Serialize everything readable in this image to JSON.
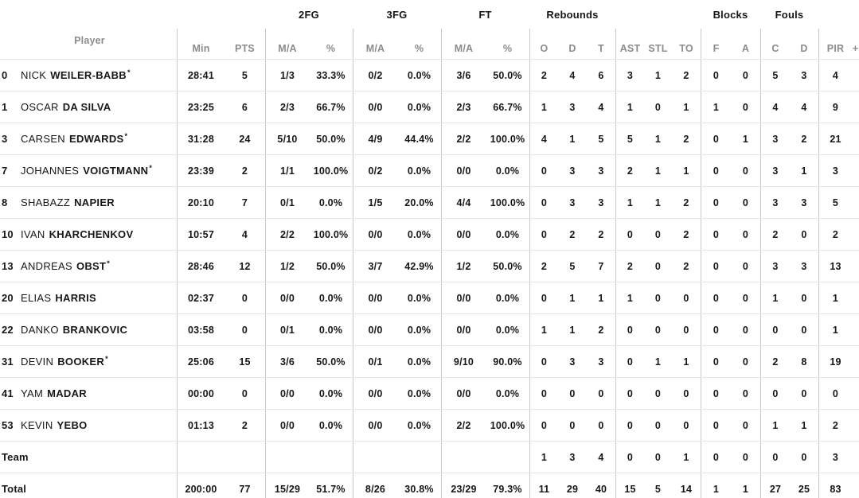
{
  "header": {
    "player_label": "Player",
    "groups": [
      {
        "label": "2FG"
      },
      {
        "label": "3FG"
      },
      {
        "label": "FT"
      },
      {
        "label": "Rebounds"
      },
      {
        "label": "Blocks"
      },
      {
        "label": "Fouls"
      }
    ],
    "columns": {
      "min": "Min",
      "pts": "PTS",
      "fg2_ma": "M/A",
      "fg2_pct": "%",
      "fg3_ma": "M/A",
      "fg3_pct": "%",
      "ft_ma": "M/A",
      "ft_pct": "%",
      "reb_o": "O",
      "reb_d": "D",
      "reb_t": "T",
      "ast": "AST",
      "stl": "STL",
      "to": "TO",
      "blk_f": "F",
      "blk_a": "A",
      "foul_c": "C",
      "foul_d": "D",
      "pir": "PIR",
      "plus": "+"
    }
  },
  "table": {
    "starter_mark": "*",
    "rows": [
      {
        "type": "player",
        "number": "0",
        "first": "NICK",
        "last": "WEILER-BABB",
        "starter": true,
        "min": "28:41",
        "pts": "5",
        "fg2_ma": "1/3",
        "fg2_pct": "33.3%",
        "fg3_ma": "0/2",
        "fg3_pct": "0.0%",
        "ft_ma": "3/6",
        "ft_pct": "50.0%",
        "reb_o": "2",
        "reb_d": "4",
        "reb_t": "6",
        "ast": "3",
        "stl": "1",
        "to": "2",
        "blk_f": "0",
        "blk_a": "0",
        "foul_c": "5",
        "foul_d": "3",
        "pir": "4"
      },
      {
        "type": "player",
        "number": "1",
        "first": "OSCAR",
        "last": "DA SILVA",
        "starter": false,
        "min": "23:25",
        "pts": "6",
        "fg2_ma": "2/3",
        "fg2_pct": "66.7%",
        "fg3_ma": "0/0",
        "fg3_pct": "0.0%",
        "ft_ma": "2/3",
        "ft_pct": "66.7%",
        "reb_o": "1",
        "reb_d": "3",
        "reb_t": "4",
        "ast": "1",
        "stl": "0",
        "to": "1",
        "blk_f": "1",
        "blk_a": "0",
        "foul_c": "4",
        "foul_d": "4",
        "pir": "9"
      },
      {
        "type": "player",
        "number": "3",
        "first": "CARSEN",
        "last": "EDWARDS",
        "starter": true,
        "min": "31:28",
        "pts": "24",
        "fg2_ma": "5/10",
        "fg2_pct": "50.0%",
        "fg3_ma": "4/9",
        "fg3_pct": "44.4%",
        "ft_ma": "2/2",
        "ft_pct": "100.0%",
        "reb_o": "4",
        "reb_d": "1",
        "reb_t": "5",
        "ast": "5",
        "stl": "1",
        "to": "2",
        "blk_f": "0",
        "blk_a": "1",
        "foul_c": "3",
        "foul_d": "2",
        "pir": "21"
      },
      {
        "type": "player",
        "number": "7",
        "first": "JOHANNES",
        "last": "VOIGTMANN",
        "starter": true,
        "min": "23:39",
        "pts": "2",
        "fg2_ma": "1/1",
        "fg2_pct": "100.0%",
        "fg3_ma": "0/2",
        "fg3_pct": "0.0%",
        "ft_ma": "0/0",
        "ft_pct": "0.0%",
        "reb_o": "0",
        "reb_d": "3",
        "reb_t": "3",
        "ast": "2",
        "stl": "1",
        "to": "1",
        "blk_f": "0",
        "blk_a": "0",
        "foul_c": "3",
        "foul_d": "1",
        "pir": "3"
      },
      {
        "type": "player",
        "number": "8",
        "first": "SHABAZZ",
        "last": "NAPIER",
        "starter": false,
        "min": "20:10",
        "pts": "7",
        "fg2_ma": "0/1",
        "fg2_pct": "0.0%",
        "fg3_ma": "1/5",
        "fg3_pct": "20.0%",
        "ft_ma": "4/4",
        "ft_pct": "100.0%",
        "reb_o": "0",
        "reb_d": "3",
        "reb_t": "3",
        "ast": "1",
        "stl": "1",
        "to": "2",
        "blk_f": "0",
        "blk_a": "0",
        "foul_c": "3",
        "foul_d": "3",
        "pir": "5"
      },
      {
        "type": "player",
        "number": "10",
        "first": "IVAN",
        "last": "KHARCHENKOV",
        "starter": false,
        "min": "10:57",
        "pts": "4",
        "fg2_ma": "2/2",
        "fg2_pct": "100.0%",
        "fg3_ma": "0/0",
        "fg3_pct": "0.0%",
        "ft_ma": "0/0",
        "ft_pct": "0.0%",
        "reb_o": "0",
        "reb_d": "2",
        "reb_t": "2",
        "ast": "0",
        "stl": "0",
        "to": "2",
        "blk_f": "0",
        "blk_a": "0",
        "foul_c": "2",
        "foul_d": "0",
        "pir": "2"
      },
      {
        "type": "player",
        "number": "13",
        "first": "ANDREAS",
        "last": "OBST",
        "starter": true,
        "min": "28:46",
        "pts": "12",
        "fg2_ma": "1/2",
        "fg2_pct": "50.0%",
        "fg3_ma": "3/7",
        "fg3_pct": "42.9%",
        "ft_ma": "1/2",
        "ft_pct": "50.0%",
        "reb_o": "2",
        "reb_d": "5",
        "reb_t": "7",
        "ast": "2",
        "stl": "0",
        "to": "2",
        "blk_f": "0",
        "blk_a": "0",
        "foul_c": "3",
        "foul_d": "3",
        "pir": "13"
      },
      {
        "type": "player",
        "number": "20",
        "first": "ELIAS",
        "last": "HARRIS",
        "starter": false,
        "min": "02:37",
        "pts": "0",
        "fg2_ma": "0/0",
        "fg2_pct": "0.0%",
        "fg3_ma": "0/0",
        "fg3_pct": "0.0%",
        "ft_ma": "0/0",
        "ft_pct": "0.0%",
        "reb_o": "0",
        "reb_d": "1",
        "reb_t": "1",
        "ast": "1",
        "stl": "0",
        "to": "0",
        "blk_f": "0",
        "blk_a": "0",
        "foul_c": "1",
        "foul_d": "0",
        "pir": "1"
      },
      {
        "type": "player",
        "number": "22",
        "first": "DANKO",
        "last": "BRANKOVIC",
        "starter": false,
        "min": "03:58",
        "pts": "0",
        "fg2_ma": "0/1",
        "fg2_pct": "0.0%",
        "fg3_ma": "0/0",
        "fg3_pct": "0.0%",
        "ft_ma": "0/0",
        "ft_pct": "0.0%",
        "reb_o": "1",
        "reb_d": "1",
        "reb_t": "2",
        "ast": "0",
        "stl": "0",
        "to": "0",
        "blk_f": "0",
        "blk_a": "0",
        "foul_c": "0",
        "foul_d": "0",
        "pir": "1"
      },
      {
        "type": "player",
        "number": "31",
        "first": "DEVIN",
        "last": "BOOKER",
        "starter": true,
        "min": "25:06",
        "pts": "15",
        "fg2_ma": "3/6",
        "fg2_pct": "50.0%",
        "fg3_ma": "0/1",
        "fg3_pct": "0.0%",
        "ft_ma": "9/10",
        "ft_pct": "90.0%",
        "reb_o": "0",
        "reb_d": "3",
        "reb_t": "3",
        "ast": "0",
        "stl": "1",
        "to": "1",
        "blk_f": "0",
        "blk_a": "0",
        "foul_c": "2",
        "foul_d": "8",
        "pir": "19"
      },
      {
        "type": "player",
        "number": "41",
        "first": "YAM",
        "last": "MADAR",
        "starter": false,
        "min": "00:00",
        "pts": "0",
        "fg2_ma": "0/0",
        "fg2_pct": "0.0%",
        "fg3_ma": "0/0",
        "fg3_pct": "0.0%",
        "ft_ma": "0/0",
        "ft_pct": "0.0%",
        "reb_o": "0",
        "reb_d": "0",
        "reb_t": "0",
        "ast": "0",
        "stl": "0",
        "to": "0",
        "blk_f": "0",
        "blk_a": "0",
        "foul_c": "0",
        "foul_d": "0",
        "pir": "0"
      },
      {
        "type": "player",
        "number": "53",
        "first": "KEVIN",
        "last": "YEBO",
        "starter": false,
        "min": "01:13",
        "pts": "2",
        "fg2_ma": "0/0",
        "fg2_pct": "0.0%",
        "fg3_ma": "0/0",
        "fg3_pct": "0.0%",
        "ft_ma": "2/2",
        "ft_pct": "100.0%",
        "reb_o": "0",
        "reb_d": "0",
        "reb_t": "0",
        "ast": "0",
        "stl": "0",
        "to": "0",
        "blk_f": "0",
        "blk_a": "0",
        "foul_c": "1",
        "foul_d": "1",
        "pir": "2"
      },
      {
        "type": "team",
        "label": "Team",
        "min": "",
        "pts": "",
        "fg2_ma": "",
        "fg2_pct": "",
        "fg3_ma": "",
        "fg3_pct": "",
        "ft_ma": "",
        "ft_pct": "",
        "reb_o": "1",
        "reb_d": "3",
        "reb_t": "4",
        "ast": "0",
        "stl": "0",
        "to": "1",
        "blk_f": "0",
        "blk_a": "0",
        "foul_c": "0",
        "foul_d": "0",
        "pir": "3"
      },
      {
        "type": "total",
        "label": "Total",
        "min": "200:00",
        "pts": "77",
        "fg2_ma": "15/29",
        "fg2_pct": "51.7%",
        "fg3_ma": "8/26",
        "fg3_pct": "30.8%",
        "ft_ma": "23/29",
        "ft_pct": "79.3%",
        "reb_o": "11",
        "reb_d": "29",
        "reb_t": "40",
        "ast": "15",
        "stl": "5",
        "to": "14",
        "blk_f": "1",
        "blk_a": "1",
        "foul_c": "27",
        "foul_d": "25",
        "pir": "83"
      }
    ]
  }
}
